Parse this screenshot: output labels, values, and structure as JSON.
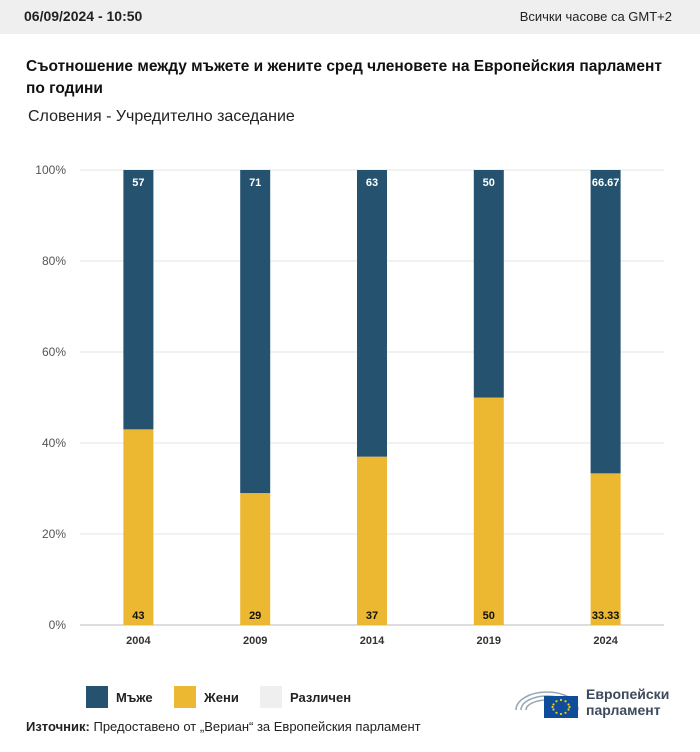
{
  "header": {
    "datetime": "06/09/2024 - 10:50",
    "timezone_note": "Всички часове са GMT+2"
  },
  "title": "Съотношение между мъжете и жените сред членовете на Европейския парламент по години",
  "subtitle": "Словения - Учредително заседание",
  "chart_data": {
    "type": "bar",
    "stacked": true,
    "categories": [
      "2004",
      "2009",
      "2014",
      "2019",
      "2024"
    ],
    "series": [
      {
        "name": "Жени",
        "values": [
          43,
          29,
          37,
          50,
          33.33
        ],
        "labels": [
          "43",
          "29",
          "37",
          "50",
          "33.33"
        ],
        "color": "#ecb731"
      },
      {
        "name": "Мъже",
        "values": [
          57,
          71,
          63,
          50,
          66.67
        ],
        "labels": [
          "57",
          "71",
          "63",
          "50",
          "66.67"
        ],
        "color": "#25526f"
      }
    ],
    "ylim": [
      0,
      100
    ],
    "yticks": [
      "0%",
      "20%",
      "40%",
      "60%",
      "80%",
      "100%"
    ],
    "grid": true,
    "legend_position": "bottom-left"
  },
  "legend": [
    {
      "label": "Мъже",
      "color": "#25526f"
    },
    {
      "label": "Жени",
      "color": "#ecb731"
    },
    {
      "label": "Различен",
      "color": "#efefef"
    }
  ],
  "source": {
    "label": "Източник:",
    "text": "Предоставено от „Вериан“ за Европейския парламент"
  },
  "logo": {
    "line1": "Европейски",
    "line2": "парламент"
  }
}
